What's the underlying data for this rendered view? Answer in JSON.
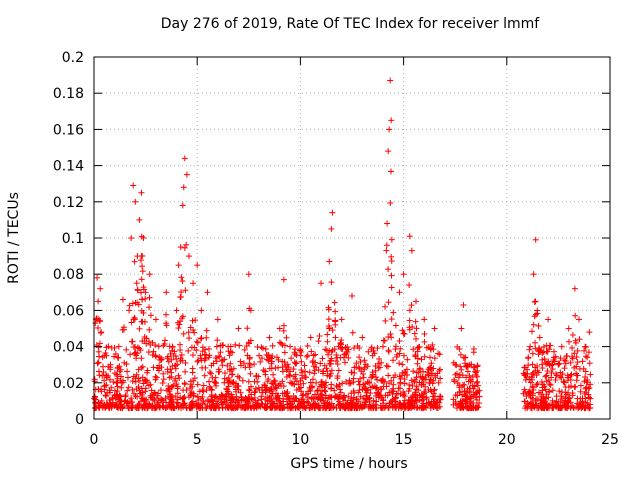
{
  "chart_data": {
    "type": "scatter",
    "title": "Day 276 of 2019, Rate Of TEC Index for receiver lmmf",
    "xlabel": "GPS time / hours",
    "ylabel": "ROTI / TECUs",
    "xlim": [
      0,
      25
    ],
    "ylim": [
      0,
      0.2
    ],
    "x_ticks": [
      "0",
      "5",
      "10",
      "15",
      "20",
      "25"
    ],
    "y_ticks": [
      "0",
      "0.02",
      "0.04",
      "0.06",
      "0.08",
      "0.1",
      "0.12",
      "0.14",
      "0.16",
      "0.18",
      "0.2"
    ],
    "grid": true,
    "marker": "+",
    "color": "#ff0000",
    "data_gap_hours": [
      18.7,
      20.8
    ],
    "series": [
      {
        "name": "ROTI",
        "points": [
          [
            0.05,
            0.012
          ],
          [
            0.1,
            0.055
          ],
          [
            0.15,
            0.078
          ],
          [
            0.2,
            0.065
          ],
          [
            0.3,
            0.072
          ],
          [
            0.35,
            0.048
          ],
          [
            0.5,
            0.035
          ],
          [
            0.8,
            0.03
          ],
          [
            1.2,
            0.04
          ],
          [
            1.4,
            0.066
          ],
          [
            1.7,
            0.06
          ],
          [
            1.8,
            0.1
          ],
          [
            1.9,
            0.129
          ],
          [
            2.0,
            0.12
          ],
          [
            2.1,
            0.09
          ],
          [
            2.2,
            0.11
          ],
          [
            2.3,
            0.125
          ],
          [
            2.4,
            0.1
          ],
          [
            2.5,
            0.07
          ],
          [
            2.7,
            0.08
          ],
          [
            3.0,
            0.055
          ],
          [
            3.5,
            0.07
          ],
          [
            3.8,
            0.04
          ],
          [
            4.0,
            0.06
          ],
          [
            4.1,
            0.085
          ],
          [
            4.2,
            0.095
          ],
          [
            4.3,
            0.118
          ],
          [
            4.35,
            0.128
          ],
          [
            4.4,
            0.144
          ],
          [
            4.5,
            0.135
          ],
          [
            4.6,
            0.09
          ],
          [
            4.8,
            0.075
          ],
          [
            5.0,
            0.085
          ],
          [
            5.2,
            0.06
          ],
          [
            5.5,
            0.07
          ],
          [
            6.0,
            0.055
          ],
          [
            6.5,
            0.04
          ],
          [
            7.0,
            0.05
          ],
          [
            7.5,
            0.08
          ],
          [
            7.6,
            0.06
          ],
          [
            8.0,
            0.035
          ],
          [
            8.5,
            0.045
          ],
          [
            9.0,
            0.05
          ],
          [
            9.2,
            0.077
          ],
          [
            9.5,
            0.04
          ],
          [
            10.0,
            0.035
          ],
          [
            10.5,
            0.045
          ],
          [
            11.0,
            0.075
          ],
          [
            11.4,
            0.087
          ],
          [
            11.5,
            0.105
          ],
          [
            11.55,
            0.114
          ],
          [
            11.7,
            0.045
          ],
          [
            12.0,
            0.055
          ],
          [
            12.5,
            0.068
          ],
          [
            13.0,
            0.045
          ],
          [
            13.5,
            0.035
          ],
          [
            14.0,
            0.04
          ],
          [
            14.1,
            0.062
          ],
          [
            14.2,
            0.108
          ],
          [
            14.25,
            0.148
          ],
          [
            14.3,
            0.16
          ],
          [
            14.35,
            0.187
          ],
          [
            14.4,
            0.165
          ],
          [
            14.8,
            0.07
          ],
          [
            15.0,
            0.08
          ],
          [
            15.3,
            0.101
          ],
          [
            15.4,
            0.093
          ],
          [
            15.6,
            0.065
          ],
          [
            16.0,
            0.055
          ],
          [
            16.5,
            0.05
          ],
          [
            16.7,
            0.02
          ],
          [
            17.5,
            0.03
          ],
          [
            17.8,
            0.05
          ],
          [
            17.9,
            0.063
          ],
          [
            18.2,
            0.03
          ],
          [
            18.6,
            0.015
          ],
          [
            21.0,
            0.025
          ],
          [
            21.3,
            0.08
          ],
          [
            21.4,
            0.099
          ],
          [
            21.6,
            0.045
          ],
          [
            22.0,
            0.055
          ],
          [
            22.5,
            0.03
          ],
          [
            23.0,
            0.05
          ],
          [
            23.3,
            0.072
          ],
          [
            23.5,
            0.055
          ],
          [
            23.8,
            0.04
          ],
          [
            24.0,
            0.048
          ]
        ]
      }
    ]
  }
}
